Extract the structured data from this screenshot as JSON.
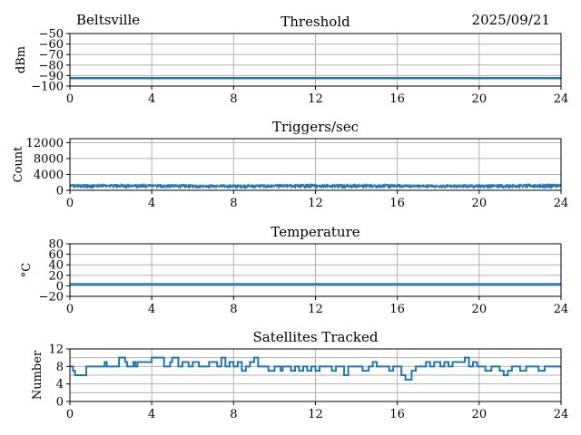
{
  "header": {
    "location": "Beltsville",
    "date": "2025/09/21"
  },
  "chart_data": [
    {
      "type": "line",
      "title": "Threshold",
      "ylabel": "dBm",
      "xlim": [
        0,
        24
      ],
      "xticks": [
        0,
        4,
        8,
        12,
        16,
        20,
        24
      ],
      "ylim": [
        -100,
        -50
      ],
      "yticks": [
        -100,
        -90,
        -80,
        -70,
        -60,
        -50
      ],
      "ytick_labels": [
        "−100",
        "−90",
        "−80",
        "−70",
        "−60",
        "−50"
      ],
      "grid": true,
      "color": "#1f77b4",
      "series": [
        {
          "x": [
            0,
            24
          ],
          "y": [
            -92.5,
            -92.5
          ]
        }
      ]
    },
    {
      "type": "line",
      "title": "Triggers/sec",
      "ylabel": "Count",
      "xlim": [
        0,
        24
      ],
      "xticks": [
        0,
        4,
        8,
        12,
        16,
        20,
        24
      ],
      "ylim": [
        0,
        13000
      ],
      "yticks": [
        0,
        4000,
        8000,
        12000
      ],
      "ytick_labels": [
        "0",
        "4000",
        "8000",
        "12000"
      ],
      "grid": true,
      "color": "#1f77b4",
      "band": {
        "low": 400,
        "high": 1600
      },
      "series": [
        {
          "x": [
            0,
            2,
            4,
            6,
            8,
            10,
            12,
            14,
            16,
            18,
            20,
            22,
            24
          ],
          "y": [
            1300,
            1100,
            1150,
            1120,
            1200,
            1180,
            1100,
            1150,
            1130,
            1200,
            1250,
            1180,
            1200
          ]
        }
      ]
    },
    {
      "type": "line",
      "title": "Temperature",
      "ylabel": "°C",
      "xlim": [
        0,
        24
      ],
      "xticks": [
        0,
        4,
        8,
        12,
        16,
        20,
        24
      ],
      "ylim": [
        -20,
        80
      ],
      "yticks": [
        -20,
        0,
        20,
        40,
        60,
        80
      ],
      "ytick_labels": [
        "−20",
        "0",
        "20",
        "40",
        "60",
        "80"
      ],
      "grid": true,
      "color": "#1f77b4",
      "series": [
        {
          "x": [
            0,
            24
          ],
          "y": [
            3,
            3
          ]
        }
      ]
    },
    {
      "type": "line",
      "title": "Satellites Tracked",
      "ylabel": "Number",
      "xlim": [
        0,
        24
      ],
      "xticks": [
        0,
        4,
        8,
        12,
        16,
        20,
        24
      ],
      "ylim": [
        0,
        12
      ],
      "yticks": [
        0,
        4,
        8,
        12
      ],
      "ytick_labels": [
        "0",
        "4",
        "8",
        "12"
      ],
      "grid": true,
      "grid_minor_y": [
        2,
        6,
        10
      ],
      "color": "#1f77b4",
      "step": true,
      "series": [
        {
          "x": [
            0,
            0.15,
            0.25,
            0.4,
            0.5,
            0.6,
            0.8,
            1.0,
            1.3,
            1.7,
            1.8,
            2.0,
            2.4,
            2.5,
            2.7,
            2.8,
            3.1,
            3.2,
            3.3,
            3.8,
            4.0,
            4.4,
            4.6,
            4.9,
            5.0,
            5.3,
            5.5,
            5.8,
            6.0,
            6.3,
            6.6,
            6.8,
            7.2,
            7.4,
            7.6,
            7.8,
            8.0,
            8.2,
            8.4,
            8.6,
            8.8,
            9.0,
            9.2,
            9.5,
            9.7,
            10.0,
            10.3,
            10.4,
            10.6,
            10.8,
            11.0,
            11.2,
            11.4,
            11.6,
            11.8,
            12.0,
            12.2,
            12.6,
            12.8,
            13.0,
            13.4,
            13.6,
            14.0,
            14.3,
            14.6,
            14.8,
            15.0,
            15.2,
            15.6,
            15.8,
            16.0,
            16.2,
            16.4,
            16.7,
            16.9,
            17.2,
            17.4,
            17.6,
            17.8,
            18.1,
            18.3,
            18.5,
            18.7,
            19.0,
            19.3,
            19.5,
            19.7,
            19.9,
            20.1,
            20.3,
            20.6,
            20.8,
            21.0,
            21.2,
            21.4,
            21.6,
            21.8,
            22.0,
            22.3,
            22.6,
            22.9,
            23.2,
            23.5,
            24
          ],
          "y": [
            8,
            7,
            6,
            6,
            6,
            6,
            8,
            8,
            8,
            9,
            8,
            8,
            10,
            10,
            9,
            8,
            9,
            8,
            9,
            9,
            10,
            10,
            8,
            9,
            10,
            8,
            9,
            8,
            9,
            8,
            8,
            9,
            8,
            10,
            8,
            9,
            8,
            9,
            7,
            8,
            9,
            10,
            8,
            8,
            7,
            8,
            7,
            8,
            8,
            7,
            8,
            7,
            8,
            7,
            8,
            7,
            8,
            8,
            7,
            8,
            6,
            8,
            8,
            7,
            8,
            9,
            8,
            8,
            7,
            8,
            8,
            6,
            5,
            7,
            8,
            8,
            9,
            8,
            9,
            8,
            9,
            8,
            9,
            9,
            10,
            8,
            9,
            8,
            8,
            7,
            8,
            8,
            7,
            6,
            7,
            8,
            8,
            7,
            8,
            8,
            7,
            8,
            8,
            8
          ]
        }
      ]
    }
  ]
}
